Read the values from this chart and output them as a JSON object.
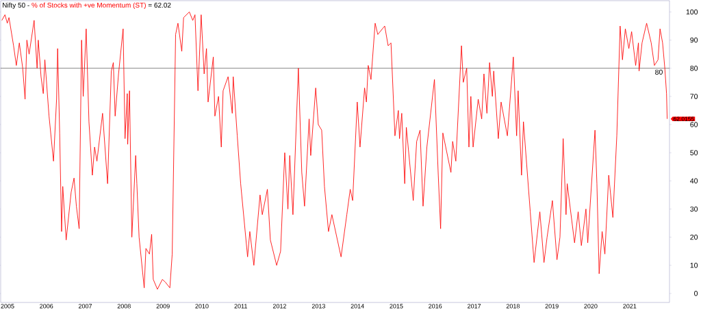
{
  "chart_data": {
    "type": "line",
    "title": "Nifty 50 -",
    "legend": "top left",
    "annotations": [
      "= 62.02",
      {
        "text": "62.0155",
        "x": "2021-12-19",
        "y": 62.0155
      }
    ],
    "x": [
      "2004-11-09",
      "2004-12-08",
      "2004-12-30",
      "2005-01-15",
      "2005-02-27",
      "2005-03-25",
      "2005-04-22",
      "2005-05-24",
      "2005-06-15",
      "2005-07-02",
      "2005-07-23",
      "2005-09-08",
      "2005-10-06",
      "2005-10-17",
      "2005-11-12",
      "2005-12-03",
      "2005-12-18",
      "2006-01-26",
      "2006-03-09",
      "2006-04-07",
      "2006-04-17",
      "2006-05-06",
      "2006-05-24",
      "2006-06-04",
      "2006-07-06",
      "2006-08-22",
      "2006-09-18",
      "2006-10-10",
      "2006-11-05",
      "2006-11-28",
      "2006-12-13",
      "2007-01-10",
      "2007-02-05",
      "2007-03-09",
      "2007-03-30",
      "2007-04-21",
      "2007-06-13",
      "2007-07-30",
      "2007-09-03",
      "2007-09-22",
      "2007-10-09",
      "2007-11-10",
      "2007-12-23",
      "2008-01-10",
      "2008-01-31",
      "2008-02-04",
      "2008-02-21",
      "2008-03-14",
      "2008-04-19",
      "2008-04-30",
      "2008-05-21",
      "2008-07-08",
      "2008-07-24",
      "2008-08-26",
      "2008-09-16",
      "2008-10-01",
      "2008-11-09",
      "2008-12-26",
      "2009-01-23",
      "2009-03-06",
      "2009-03-28",
      "2009-04-29",
      "2009-05-21",
      "2009-06-26",
      "2009-07-13",
      "2009-09-05",
      "2009-10-07",
      "2009-10-28",
      "2009-11-25",
      "2009-12-25",
      "2010-01-22",
      "2010-02-13",
      "2010-02-28",
      "2010-04-18",
      "2010-05-03",
      "2010-06-06",
      "2010-07-02",
      "2010-07-19",
      "2010-09-04",
      "2010-10-13",
      "2010-10-22",
      "2010-11-29",
      "2010-12-31",
      "2011-03-06",
      "2011-03-27",
      "2011-05-04",
      "2011-07-01",
      "2011-07-22",
      "2011-09-08",
      "2011-10-06",
      "2011-12-04",
      "2012-01-10",
      "2012-02-18",
      "2012-03-19",
      "2012-04-05",
      "2012-05-05",
      "2012-06-25",
      "2012-07-27",
      "2012-08-22",
      "2012-10-04",
      "2012-10-19",
      "2012-12-05",
      "2012-12-29",
      "2013-01-30",
      "2013-02-25",
      "2013-04-04",
      "2013-05-06",
      "2013-07-31",
      "2013-09-23",
      "2013-10-25",
      "2013-11-17",
      "2013-12-30",
      "2014-01-25",
      "2014-03-09",
      "2014-03-26",
      "2014-04-12",
      "2014-05-08",
      "2014-06-16",
      "2014-07-11",
      "2014-09-14",
      "2014-10-16",
      "2014-11-12",
      "2014-12-19",
      "2015-01-20",
      "2015-01-31",
      "2015-02-21",
      "2015-03-21",
      "2015-04-05",
      "2015-06-09",
      "2015-07-11",
      "2015-08-12",
      "2015-09-09",
      "2015-10-15",
      "2015-12-25",
      "2016-01-30",
      "2016-02-21",
      "2016-03-13",
      "2016-05-28",
      "2016-06-13",
      "2016-07-13",
      "2016-09-04",
      "2016-09-21",
      "2016-10-23",
      "2016-11-13",
      "2016-12-01",
      "2016-12-22",
      "2017-02-08",
      "2017-03-13",
      "2017-04-03",
      "2017-05-01",
      "2017-05-26",
      "2017-06-21",
      "2017-07-04",
      "2017-08-16",
      "2017-09-11",
      "2017-11-09",
      "2018-01-04",
      "2018-02-04",
      "2018-02-18",
      "2018-03-22",
      "2018-04-09",
      "2018-06-12",
      "2018-07-18",
      "2018-09-10",
      "2018-10-19",
      "2018-11-17",
      "2019-01-06",
      "2019-02-18",
      "2019-03-18",
      "2019-04-17",
      "2019-05-14",
      "2019-05-25",
      "2019-08-02",
      "2019-09-05",
      "2019-10-05",
      "2019-11-17",
      "2019-12-04",
      "2020-02-10",
      "2020-02-28",
      "2020-03-20",
      "2020-04-17",
      "2020-05-13",
      "2020-06-18",
      "2020-07-27",
      "2020-09-02",
      "2020-10-03",
      "2020-10-25",
      "2020-11-21",
      "2020-12-24",
      "2021-01-19",
      "2021-02-26",
      "2021-03-24",
      "2021-03-30",
      "2021-04-27",
      "2021-06-09",
      "2021-07-22",
      "2021-08-21",
      "2021-09-24",
      "2021-10-13",
      "2021-11-06",
      "2021-11-27",
      "2021-12-13",
      "2021-12-19"
    ],
    "series": [
      {
        "name": "% of Stocks with +ve Momentum (ST)",
        "color": "#ff0000",
        "values": [
          97,
          99,
          96,
          98,
          88,
          81,
          89,
          80,
          69,
          90,
          85,
          97,
          80,
          90,
          77,
          71,
          83,
          63,
          47,
          69,
          87,
          57,
          22,
          38,
          19,
          36,
          41,
          31,
          23,
          90,
          70,
          94,
          61,
          42,
          52,
          47,
          64,
          39,
          79,
          82,
          63,
          78,
          94,
          55,
          71,
          53,
          72,
          20,
          49,
          39,
          20,
          2,
          16,
          14,
          21,
          5,
          1.5,
          5,
          4,
          2,
          14,
          92,
          96,
          86,
          98,
          100,
          97,
          99,
          72,
          99,
          78,
          87,
          68,
          84,
          63,
          70,
          52,
          72,
          77,
          64,
          77,
          56,
          39,
          13,
          22,
          10,
          35,
          28,
          37,
          19,
          10,
          15,
          50,
          30,
          49,
          28,
          80,
          43,
          31,
          62,
          49,
          73,
          60,
          58,
          38,
          22,
          28,
          13,
          28,
          37,
          33,
          68,
          52,
          73,
          68,
          81,
          76,
          96,
          92,
          95,
          88,
          89,
          56,
          65,
          55,
          64,
          39,
          59,
          33,
          54,
          58,
          31,
          52,
          76,
          42,
          23,
          57,
          43,
          54,
          47,
          88,
          75,
          80,
          52,
          70,
          52,
          69,
          62,
          78,
          64,
          82,
          70,
          79,
          55,
          68,
          56,
          84,
          56,
          72,
          42,
          61,
          29,
          11,
          29,
          11,
          20,
          33,
          12,
          20,
          55,
          28,
          39,
          18,
          29,
          17,
          30,
          18,
          58,
          39,
          7,
          22,
          14,
          42,
          27,
          56,
          95,
          83,
          94,
          87,
          93,
          81,
          89,
          79,
          89,
          96,
          89,
          81,
          83,
          94,
          89,
          80,
          71,
          62.0155
        ]
      }
    ],
    "xlim": [
      "2004-10-29",
      "2022-01-10"
    ],
    "xticks": [
      "2005",
      "2006",
      "2007",
      "2008",
      "2009",
      "2010",
      "2011",
      "2012",
      "2013",
      "2014",
      "2015",
      "2016",
      "2017",
      "2018",
      "2019",
      "2020",
      "2021"
    ],
    "ylim": [
      -3.2,
      104
    ],
    "yticks": [
      0,
      10,
      20,
      30,
      40,
      50,
      60,
      70,
      80,
      90,
      100
    ],
    "ref_lines": [
      {
        "axis": "y",
        "value": 80,
        "label": "80",
        "color": "#505050"
      }
    ]
  }
}
